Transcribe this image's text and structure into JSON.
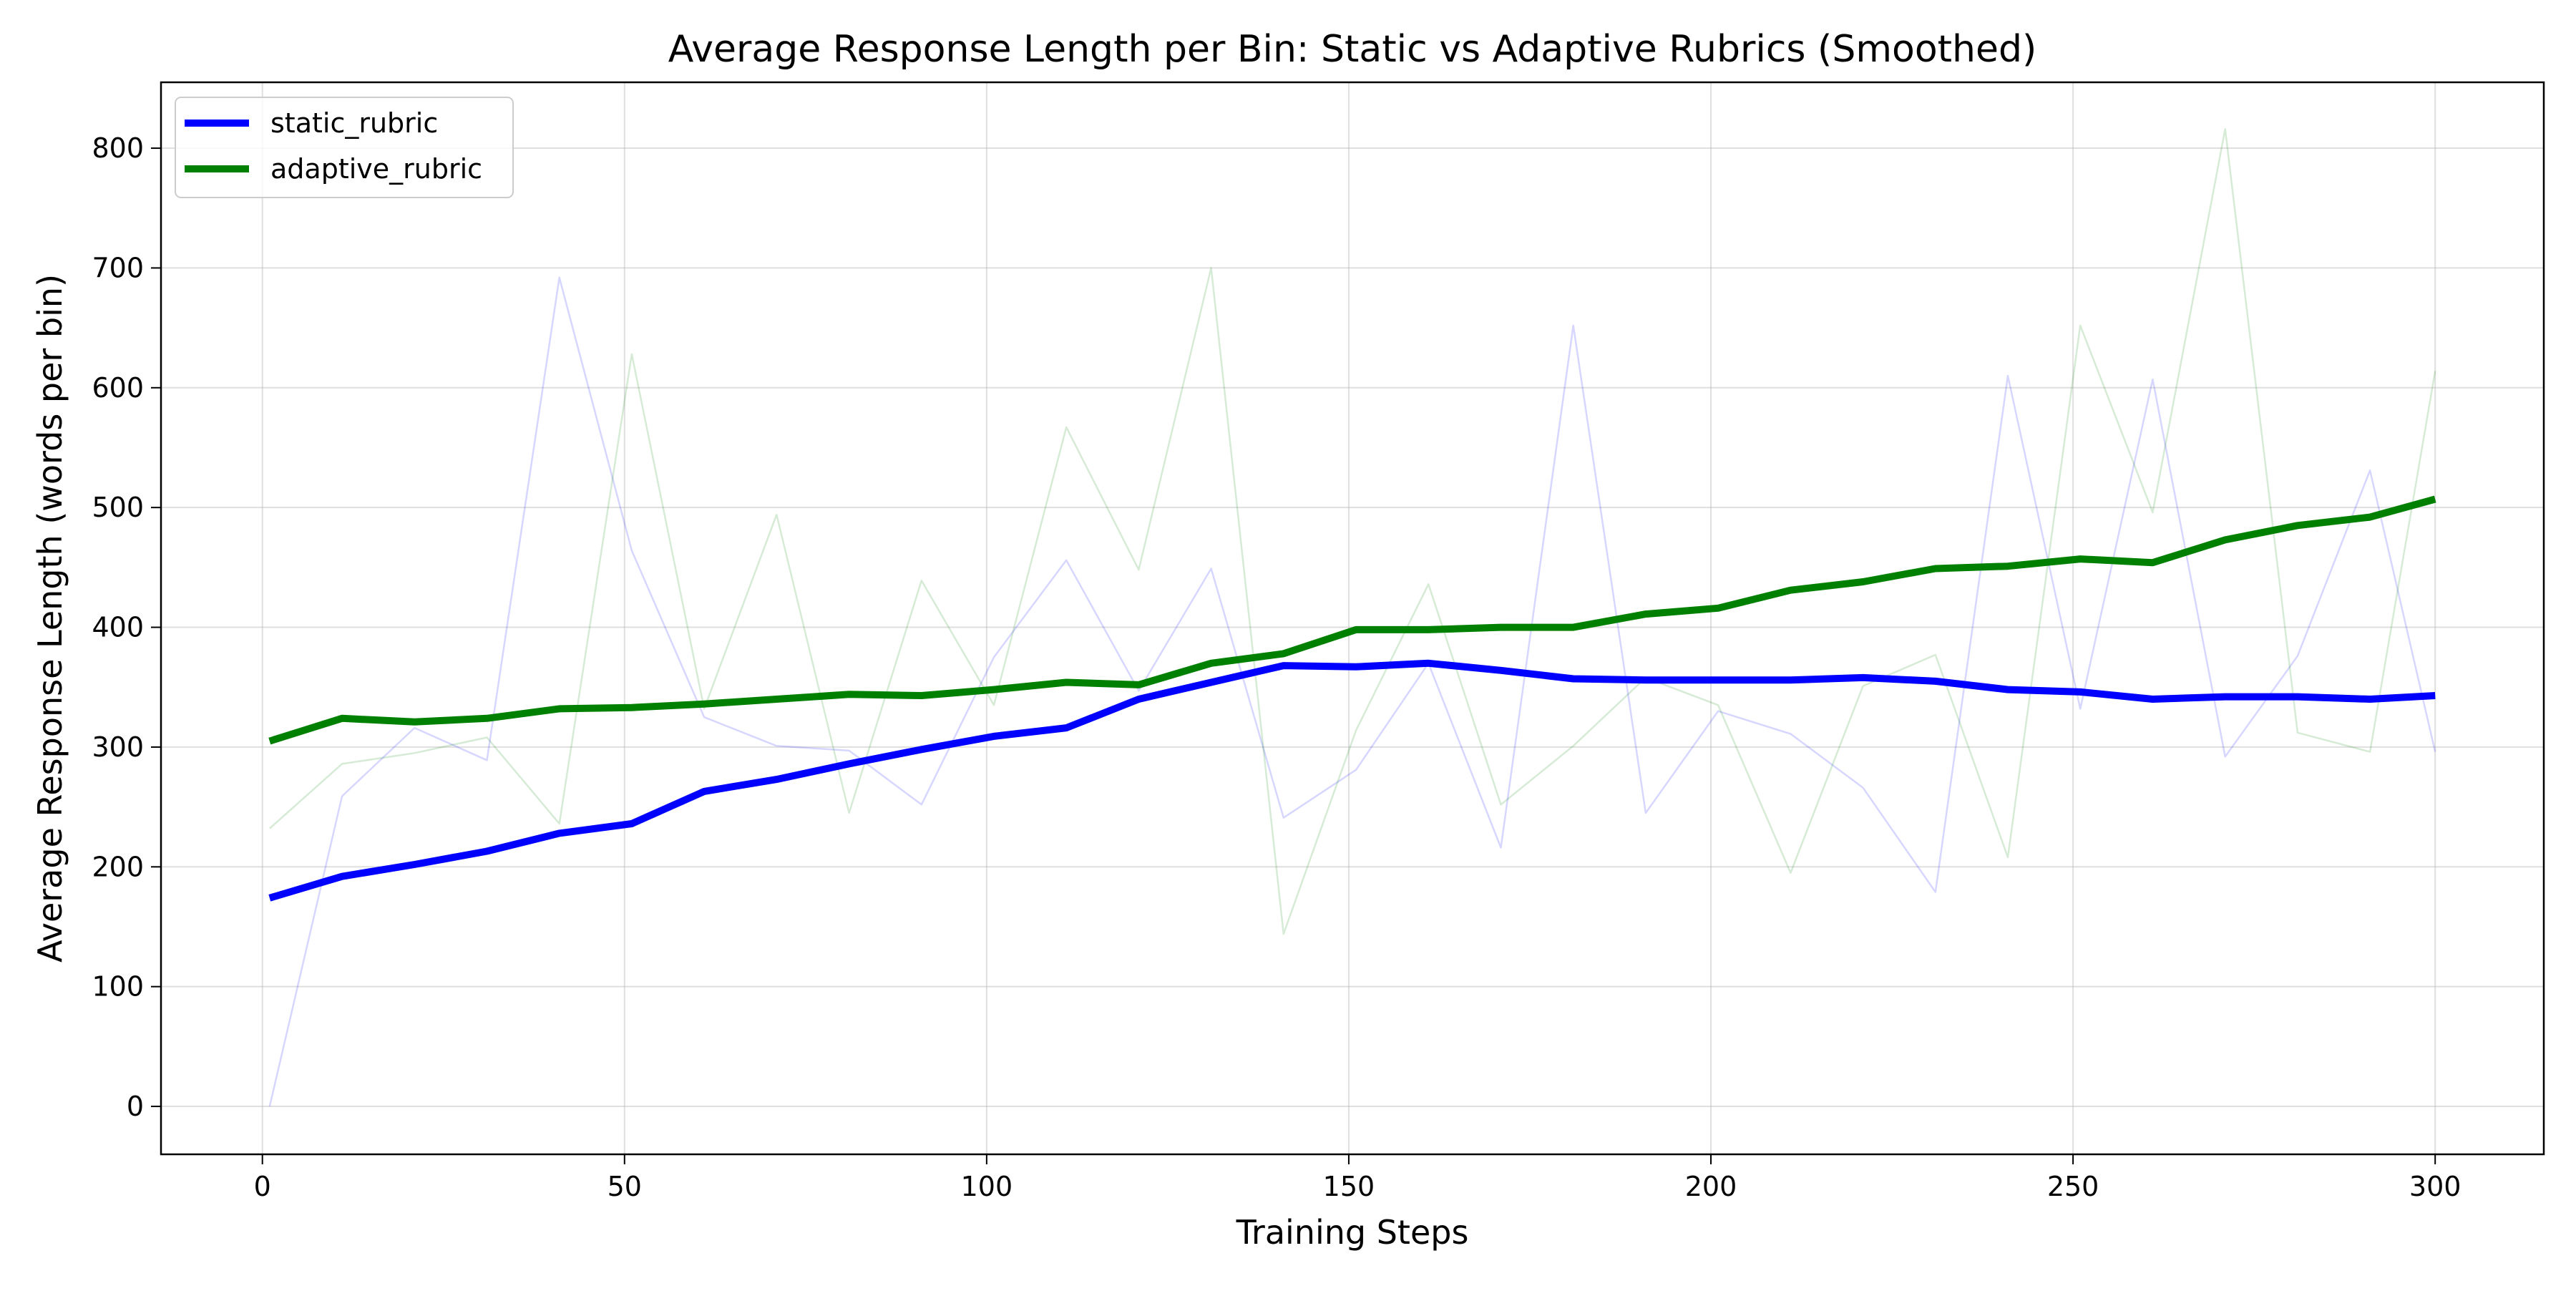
{
  "chart_data": {
    "type": "line",
    "title": "Average Response Length per Bin: Static vs Adaptive Rubrics (Smoothed)",
    "xlabel": "Training Steps",
    "ylabel": "Average Response Length (words per bin)",
    "xlim": [
      -14,
      315
    ],
    "ylim": [
      -40,
      855
    ],
    "xticks": [
      0,
      50,
      100,
      150,
      200,
      250,
      300
    ],
    "yticks": [
      0,
      100,
      200,
      300,
      400,
      500,
      600,
      700,
      800
    ],
    "grid": true,
    "legend_position": "top-left",
    "x": [
      1,
      11,
      21,
      31,
      41,
      51,
      61,
      71,
      81,
      91,
      101,
      111,
      121,
      131,
      141,
      151,
      161,
      171,
      181,
      191,
      201,
      211,
      221,
      231,
      241,
      251,
      261,
      271,
      281,
      291,
      300
    ],
    "series": [
      {
        "name": "static_rubric",
        "kind": "smoothed",
        "color": "#0000ff",
        "values": [
          174,
          192,
          202,
          213,
          228,
          236,
          263,
          273,
          286,
          298,
          309,
          316,
          340,
          354,
          368,
          367,
          370,
          364,
          357,
          356,
          356,
          356,
          358,
          355,
          348,
          346,
          340,
          342,
          342,
          340,
          343
        ]
      },
      {
        "name": "adaptive_rubric",
        "kind": "smoothed",
        "color": "#008000",
        "values": [
          305,
          324,
          321,
          324,
          332,
          333,
          336,
          340,
          344,
          343,
          348,
          354,
          352,
          370,
          378,
          398,
          398,
          400,
          400,
          411,
          416,
          431,
          438,
          449,
          451,
          457,
          454,
          473,
          485,
          492,
          507
        ]
      },
      {
        "name": "static_rubric",
        "kind": "raw",
        "color": "#0000ff",
        "values": [
          0,
          259,
          316,
          289,
          692,
          464,
          325,
          301,
          297,
          252,
          375,
          456,
          347,
          449,
          241,
          281,
          370,
          216,
          652,
          245,
          330,
          311,
          266,
          179,
          610,
          332,
          607,
          292,
          376,
          531,
          296
        ]
      },
      {
        "name": "adaptive_rubric",
        "kind": "raw",
        "color": "#008000",
        "values": [
          232,
          286,
          295,
          308,
          236,
          628,
          332,
          494,
          245,
          439,
          335,
          567,
          448,
          700,
          144,
          314,
          436,
          252,
          301,
          358,
          335,
          195,
          351,
          377,
          208,
          652,
          496,
          816,
          312,
          296,
          614
        ]
      }
    ]
  }
}
